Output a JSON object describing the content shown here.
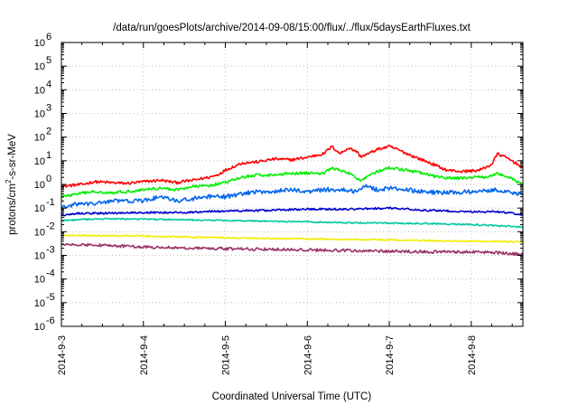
{
  "chart_data": {
    "type": "line",
    "title": "/data/run/goesPlots/archive/2014-09-08/15:00/flux/../flux/5daysEarthFluxes.txt",
    "xlabel": "Coordinated Universal Time (UTC)",
    "ylabel": {
      "base": "protons/cm",
      "sup": "2",
      "rest": "-s-sr-MeV"
    },
    "yscale": "log",
    "ylim_exp": [
      -6,
      6
    ],
    "y_tick_exponents": [
      -6,
      -5,
      -4,
      -3,
      -2,
      -1,
      0,
      1,
      2,
      3,
      4,
      5,
      6
    ],
    "y_tick_base": "10",
    "xlim_days": [
      3,
      8.63
    ],
    "x_ticks": [
      {
        "label": "2014-9-3",
        "day": 3
      },
      {
        "label": "2014-9-4",
        "day": 4
      },
      {
        "label": "2014-9-5",
        "day": 5
      },
      {
        "label": "2014-9-6",
        "day": 6
      },
      {
        "label": "2014-9-7",
        "day": 7
      },
      {
        "label": "2014-9-8",
        "day": 8
      }
    ],
    "grid": true,
    "legend": "none",
    "series": [
      {
        "color": "#ff0000",
        "noise": 0.06,
        "points": [
          [
            3.0,
            0.8
          ],
          [
            3.1,
            0.9
          ],
          [
            3.25,
            1.0
          ],
          [
            3.4,
            1.3
          ],
          [
            3.6,
            1.2
          ],
          [
            3.8,
            1.1
          ],
          [
            4.0,
            1.3
          ],
          [
            4.2,
            1.5
          ],
          [
            4.4,
            1.2
          ],
          [
            4.6,
            1.5
          ],
          [
            4.8,
            2.0
          ],
          [
            4.9,
            2.5
          ],
          [
            5.0,
            4.0
          ],
          [
            5.2,
            8.0
          ],
          [
            5.4,
            9.0
          ],
          [
            5.6,
            12
          ],
          [
            5.8,
            11
          ],
          [
            6.0,
            14
          ],
          [
            6.2,
            20
          ],
          [
            6.3,
            40
          ],
          [
            6.4,
            20
          ],
          [
            6.5,
            35
          ],
          [
            6.6,
            25
          ],
          [
            6.65,
            15
          ],
          [
            6.75,
            20
          ],
          [
            6.85,
            30
          ],
          [
            7.0,
            40
          ],
          [
            7.1,
            30
          ],
          [
            7.3,
            15
          ],
          [
            7.5,
            8
          ],
          [
            7.7,
            4
          ],
          [
            7.9,
            3.5
          ],
          [
            8.1,
            4
          ],
          [
            8.25,
            7
          ],
          [
            8.32,
            20
          ],
          [
            8.4,
            15
          ],
          [
            8.5,
            10
          ],
          [
            8.6,
            6
          ],
          [
            8.63,
            5
          ]
        ]
      },
      {
        "color": "#00ee00",
        "noise": 0.06,
        "points": [
          [
            3.0,
            0.3
          ],
          [
            3.2,
            0.4
          ],
          [
            3.4,
            0.5
          ],
          [
            3.6,
            0.45
          ],
          [
            3.8,
            0.5
          ],
          [
            4.0,
            0.6
          ],
          [
            4.2,
            0.7
          ],
          [
            4.4,
            0.6
          ],
          [
            4.6,
            0.8
          ],
          [
            4.8,
            0.9
          ],
          [
            5.0,
            1.2
          ],
          [
            5.2,
            2.0
          ],
          [
            5.4,
            2.5
          ],
          [
            5.6,
            2.5
          ],
          [
            5.8,
            3.0
          ],
          [
            6.0,
            3.0
          ],
          [
            6.2,
            3.0
          ],
          [
            6.3,
            5.0
          ],
          [
            6.5,
            3.0
          ],
          [
            6.65,
            1.5
          ],
          [
            6.8,
            3.0
          ],
          [
            7.0,
            5.0
          ],
          [
            7.2,
            4.0
          ],
          [
            7.4,
            3.0
          ],
          [
            7.6,
            2.0
          ],
          [
            7.8,
            1.8
          ],
          [
            8.0,
            2.0
          ],
          [
            8.2,
            2.0
          ],
          [
            8.3,
            3.0
          ],
          [
            8.45,
            2.0
          ],
          [
            8.63,
            1.0
          ]
        ]
      },
      {
        "color": "#0066ee",
        "noise": 0.09,
        "points": [
          [
            3.0,
            0.1
          ],
          [
            3.2,
            0.15
          ],
          [
            3.4,
            0.15
          ],
          [
            3.6,
            0.2
          ],
          [
            3.8,
            0.2
          ],
          [
            4.0,
            0.2
          ],
          [
            4.2,
            0.3
          ],
          [
            4.4,
            0.2
          ],
          [
            4.6,
            0.25
          ],
          [
            4.8,
            0.3
          ],
          [
            5.0,
            0.3
          ],
          [
            5.2,
            0.4
          ],
          [
            5.4,
            0.5
          ],
          [
            5.6,
            0.5
          ],
          [
            5.8,
            0.6
          ],
          [
            6.0,
            0.5
          ],
          [
            6.2,
            0.6
          ],
          [
            6.4,
            0.6
          ],
          [
            6.6,
            0.5
          ],
          [
            6.7,
            0.9
          ],
          [
            6.85,
            0.6
          ],
          [
            7.0,
            0.7
          ],
          [
            7.2,
            0.6
          ],
          [
            7.4,
            0.5
          ],
          [
            7.6,
            0.45
          ],
          [
            7.8,
            0.45
          ],
          [
            8.0,
            0.5
          ],
          [
            8.3,
            0.6
          ],
          [
            8.5,
            0.45
          ],
          [
            8.63,
            0.4
          ]
        ]
      },
      {
        "color": "#0000cc",
        "noise": 0.04,
        "points": [
          [
            3.0,
            0.05
          ],
          [
            3.2,
            0.06
          ],
          [
            3.5,
            0.06
          ],
          [
            4.0,
            0.065
          ],
          [
            4.5,
            0.065
          ],
          [
            5.0,
            0.075
          ],
          [
            5.5,
            0.08
          ],
          [
            6.0,
            0.09
          ],
          [
            6.5,
            0.09
          ],
          [
            7.0,
            0.1
          ],
          [
            7.5,
            0.08
          ],
          [
            8.0,
            0.07
          ],
          [
            8.3,
            0.07
          ],
          [
            8.63,
            0.055
          ]
        ]
      },
      {
        "color": "#00c8a0",
        "noise": 0.03,
        "points": [
          [
            3.0,
            0.03
          ],
          [
            3.3,
            0.033
          ],
          [
            3.6,
            0.035
          ],
          [
            4.0,
            0.034
          ],
          [
            4.5,
            0.032
          ],
          [
            5.0,
            0.03
          ],
          [
            5.5,
            0.028
          ],
          [
            6.0,
            0.026
          ],
          [
            6.5,
            0.024
          ],
          [
            7.0,
            0.023
          ],
          [
            7.5,
            0.022
          ],
          [
            8.0,
            0.02
          ],
          [
            8.3,
            0.018
          ],
          [
            8.63,
            0.016
          ]
        ]
      },
      {
        "color": "#eeee00",
        "noise": 0.03,
        "points": [
          [
            3.0,
            0.007
          ],
          [
            3.5,
            0.0068
          ],
          [
            4.0,
            0.0066
          ],
          [
            4.5,
            0.006
          ],
          [
            5.0,
            0.0056
          ],
          [
            5.5,
            0.0052
          ],
          [
            6.0,
            0.005
          ],
          [
            6.5,
            0.0047
          ],
          [
            7.0,
            0.0045
          ],
          [
            7.5,
            0.0042
          ],
          [
            8.0,
            0.004
          ],
          [
            8.3,
            0.0039
          ],
          [
            8.63,
            0.0037
          ]
        ]
      },
      {
        "color": "#993366",
        "noise": 0.06,
        "points": [
          [
            3.0,
            0.0028
          ],
          [
            3.5,
            0.0027
          ],
          [
            4.0,
            0.0023
          ],
          [
            4.5,
            0.0021
          ],
          [
            5.0,
            0.0019
          ],
          [
            5.5,
            0.0018
          ],
          [
            6.0,
            0.0017
          ],
          [
            6.5,
            0.0016
          ],
          [
            7.0,
            0.0015
          ],
          [
            7.5,
            0.0014
          ],
          [
            8.0,
            0.0014
          ],
          [
            8.3,
            0.0013
          ],
          [
            8.63,
            0.0011
          ]
        ]
      }
    ]
  }
}
